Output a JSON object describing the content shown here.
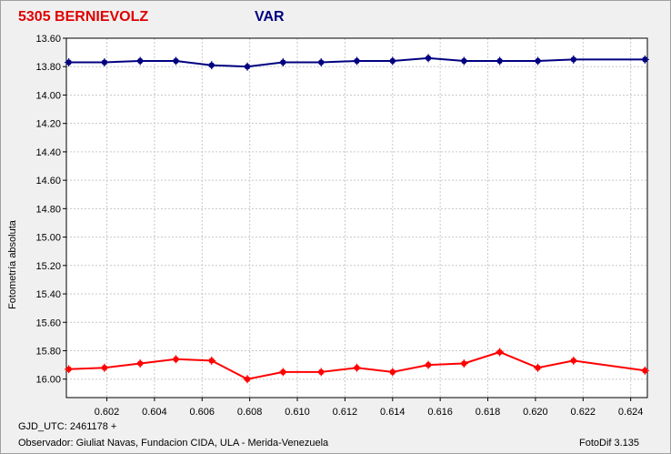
{
  "header": {
    "star": "5305 BERNIEVOLZ",
    "series_label": "VAR"
  },
  "footer": {
    "gjd": "GJD_UTC: 2461178 +",
    "observer": "Observador: Giuliat Navas, Fundacion CIDA, ULA - Merida-Venezuela",
    "version": "FotoDif 3.135"
  },
  "chart_data": {
    "type": "line",
    "title": "5305 BERNIEVOLZ",
    "subtitle": "VAR",
    "xlabel": "",
    "ylabel": "Fotometría absoluta",
    "xlim": [
      0.6003,
      0.6247
    ],
    "ylim": [
      13.6,
      16.13
    ],
    "y_inverted": true,
    "grid": true,
    "x_ticks": [
      "0.602",
      "0.604",
      "0.606",
      "0.608",
      "0.610",
      "0.612",
      "0.614",
      "0.616",
      "0.618",
      "0.620",
      "0.622",
      "0.624"
    ],
    "y_ticks": [
      "13.60",
      "13.80",
      "14.00",
      "14.20",
      "14.40",
      "14.60",
      "14.80",
      "15.00",
      "15.20",
      "15.40",
      "15.60",
      "15.80",
      "16.00"
    ],
    "series": [
      {
        "color": "#000080",
        "x": [
          0.6004,
          0.6019,
          0.6034,
          0.6049,
          0.6064,
          0.6079,
          0.6094,
          0.611,
          0.6125,
          0.614,
          0.6155,
          0.617,
          0.6185,
          0.6201,
          0.6216,
          0.6246
        ],
        "y": [
          13.77,
          13.77,
          13.76,
          13.76,
          13.79,
          13.8,
          13.77,
          13.77,
          13.76,
          13.76,
          13.74,
          13.76,
          13.76,
          13.76,
          13.75,
          13.75
        ]
      },
      {
        "color": "#ff0000",
        "x": [
          0.6004,
          0.6019,
          0.6034,
          0.6049,
          0.6064,
          0.6079,
          0.6094,
          0.611,
          0.6125,
          0.614,
          0.6155,
          0.617,
          0.6185,
          0.6201,
          0.6216,
          0.6246
        ],
        "y": [
          15.93,
          15.92,
          15.89,
          15.86,
          15.87,
          16.0,
          15.95,
          15.95,
          15.92,
          15.95,
          15.9,
          15.89,
          15.81,
          15.92,
          15.87,
          15.94
        ]
      }
    ]
  }
}
